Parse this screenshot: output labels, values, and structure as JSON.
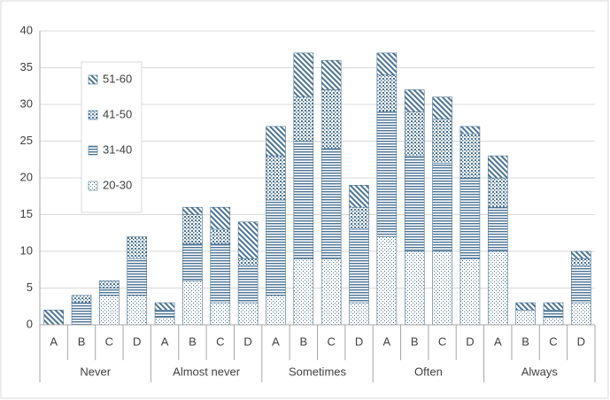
{
  "chart_data": {
    "type": "stacked_bar",
    "categories": [
      "A",
      "B",
      "C",
      "D",
      "A",
      "B",
      "C",
      "D",
      "A",
      "B",
      "C",
      "D",
      "A",
      "B",
      "C",
      "D",
      "A",
      "B",
      "C",
      "D"
    ],
    "groups": [
      "Never",
      "Almost never",
      "Sometimes",
      "Often",
      "Always"
    ],
    "series": [
      {
        "name": "20-30",
        "color": "#4a7394",
        "pattern": "sparse-dots",
        "values": [
          0,
          0,
          4,
          4,
          1,
          6,
          3,
          3,
          4,
          9,
          9,
          3,
          12,
          10,
          10,
          9,
          10,
          2,
          1,
          3
        ]
      },
      {
        "name": "31-40",
        "color": "#4a7394",
        "pattern": "horizontal",
        "values": [
          0,
          3,
          1,
          5,
          1,
          5,
          8,
          5,
          13,
          16,
          15,
          10,
          17,
          13,
          12,
          11,
          6,
          0,
          1,
          5
        ]
      },
      {
        "name": "41-50",
        "color": "#4a7394",
        "pattern": "dense-dots",
        "values": [
          0,
          1,
          1,
          3,
          0,
          4,
          2,
          1,
          6,
          6,
          8,
          3,
          5,
          6,
          6,
          6,
          4,
          0,
          0,
          1
        ]
      },
      {
        "name": "51-60",
        "color": "#4a7394",
        "pattern": "diagonal",
        "values": [
          2,
          0,
          0,
          0,
          1,
          1,
          3,
          5,
          4,
          6,
          4,
          3,
          3,
          3,
          3,
          1,
          3,
          1,
          1,
          1
        ]
      }
    ],
    "ylim": [
      0,
      40
    ],
    "yticks": [
      0,
      5,
      10,
      15,
      20,
      25,
      30,
      35,
      40
    ],
    "grid": true,
    "legend": "upper left"
  }
}
